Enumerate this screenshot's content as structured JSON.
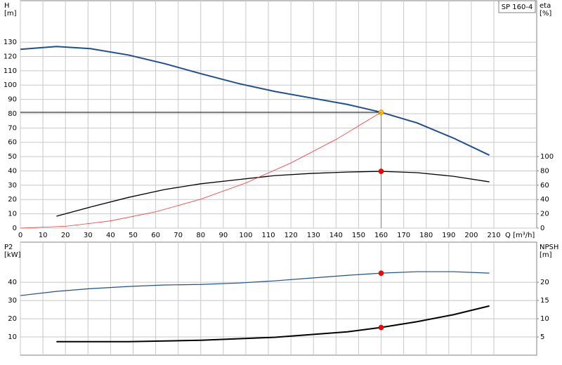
{
  "chart_data": [
    {
      "type": "line",
      "product": "SP 160-4",
      "ylabel": [
        "H",
        "[m]"
      ],
      "y2label": [
        "eta",
        "[%]"
      ],
      "xlabel": "Q [m³/h]",
      "xlim": [
        0,
        229
      ],
      "xticks": [
        0,
        10,
        20,
        30,
        40,
        50,
        60,
        70,
        80,
        90,
        100,
        110,
        120,
        130,
        140,
        150,
        160,
        170,
        180,
        190,
        200,
        210
      ],
      "ylim": [
        0,
        159
      ],
      "yticks": [
        0,
        10,
        20,
        30,
        40,
        50,
        60,
        70,
        80,
        90,
        100,
        110,
        120,
        130
      ],
      "y2lim": [
        0,
        318
      ],
      "y2ticks": [
        0,
        20,
        40,
        60,
        80,
        100
      ],
      "grid": true,
      "duty_point": {
        "x": 160,
        "y": 81
      },
      "series": [
        {
          "color": "#1f4e8c",
          "line_width": 2,
          "marker_color": "#ffc000",
          "x": [
            0,
            16,
            31,
            48,
            64,
            80,
            97,
            113,
            129,
            145,
            160,
            176,
            192,
            208
          ],
          "values": [
            125,
            127,
            125.5,
            121,
            115,
            108,
            101,
            95.5,
            91,
            86.5,
            81,
            73.5,
            63,
            51
          ]
        },
        {
          "color": "#000000",
          "line_width": 1.3,
          "marker_color": "#ff0000",
          "axis": "y2",
          "x": [
            16,
            31,
            48,
            64,
            80,
            97,
            113,
            129,
            145,
            160,
            176,
            192,
            208
          ],
          "values": [
            16.7,
            29.4,
            43,
            54,
            62,
            68,
            73.5,
            76.5,
            78.4,
            79.4,
            77.5,
            72.5,
            64.7
          ]
        },
        {
          "color": "#ff3030",
          "line_width": 0.8,
          "x": [
            0,
            20,
            40,
            60,
            80,
            100,
            120,
            140,
            160
          ],
          "values": [
            0,
            1.27,
            5.06,
            11.4,
            20.25,
            31.6,
            45.6,
            62,
            81
          ]
        }
      ]
    },
    {
      "type": "line",
      "ylabel": [
        "P2",
        "[kW]"
      ],
      "y2label": [
        "NPSH",
        "[m]"
      ],
      "xlim": [
        0,
        229
      ],
      "xticks": [
        0,
        10,
        20,
        30,
        40,
        50,
        60,
        70,
        80,
        90,
        100,
        110,
        120,
        130,
        140,
        150,
        160,
        170,
        180,
        190,
        200,
        210
      ],
      "ylim": [
        0,
        62
      ],
      "yticks": [
        10,
        20,
        30,
        40
      ],
      "y2lim": [
        0,
        31
      ],
      "y2ticks": [
        5,
        10,
        15,
        20
      ],
      "grid": true,
      "duty_point": {
        "x": 160
      },
      "series": [
        {
          "color": "#1f4e8c",
          "line_width": 1.2,
          "marker_color": "#ff0000",
          "x": [
            0,
            16,
            31,
            48,
            64,
            80,
            97,
            113,
            129,
            145,
            160,
            176,
            192,
            208
          ],
          "values": [
            32.7,
            35,
            36.5,
            37.7,
            38.5,
            38.8,
            39.6,
            40.8,
            42.3,
            43.8,
            45,
            45.8,
            45.8,
            45
          ]
        },
        {
          "color": "#000000",
          "line_width": 2,
          "marker_color": "#ff0000",
          "axis": "y2",
          "x": [
            16,
            48,
            80,
            113,
            145,
            160,
            176,
            192,
            208
          ],
          "values": [
            3.7,
            3.7,
            4.1,
            4.9,
            6.4,
            7.6,
            9.2,
            11.1,
            13.5
          ]
        }
      ]
    }
  ]
}
